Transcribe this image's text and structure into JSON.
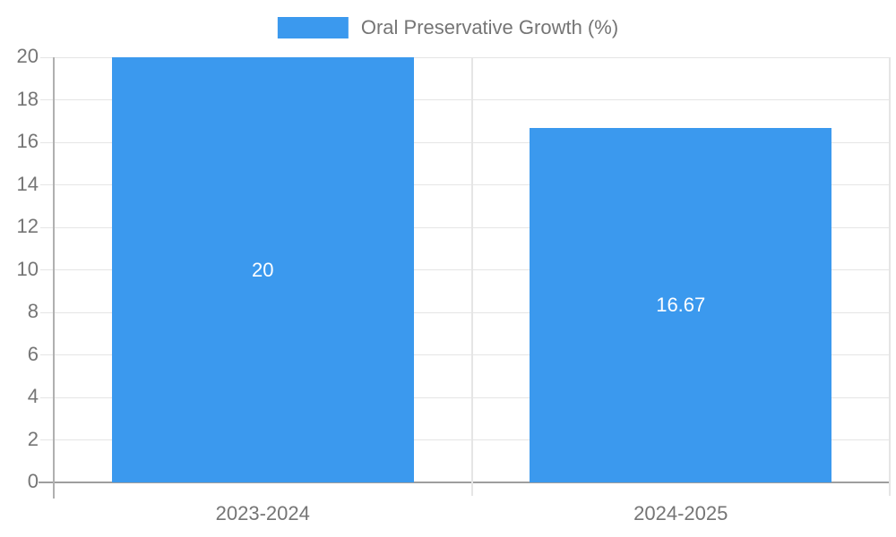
{
  "colors": {
    "bar": "#3b99ee",
    "text": "#757575",
    "grid": "#e5e5e5",
    "axis": "#9e9e9e",
    "bar_label_text": "#ffffff",
    "background": "#ffffff"
  },
  "legend": {
    "label": "Oral Preservative Growth (%)",
    "position": "top-center"
  },
  "chart_data": {
    "type": "bar",
    "title": "",
    "xlabel": "",
    "ylabel": "",
    "categories": [
      "2023-2024",
      "2024-2025"
    ],
    "series": [
      {
        "name": "Oral Preservative Growth (%)",
        "values": [
          20,
          16.67
        ]
      }
    ],
    "bar_value_labels": [
      "20",
      "16.67"
    ],
    "ylim": [
      0,
      20
    ],
    "yticks": [
      0,
      2,
      4,
      6,
      8,
      10,
      12,
      14,
      16,
      18,
      20
    ],
    "grid": true,
    "legend_position": "top"
  }
}
